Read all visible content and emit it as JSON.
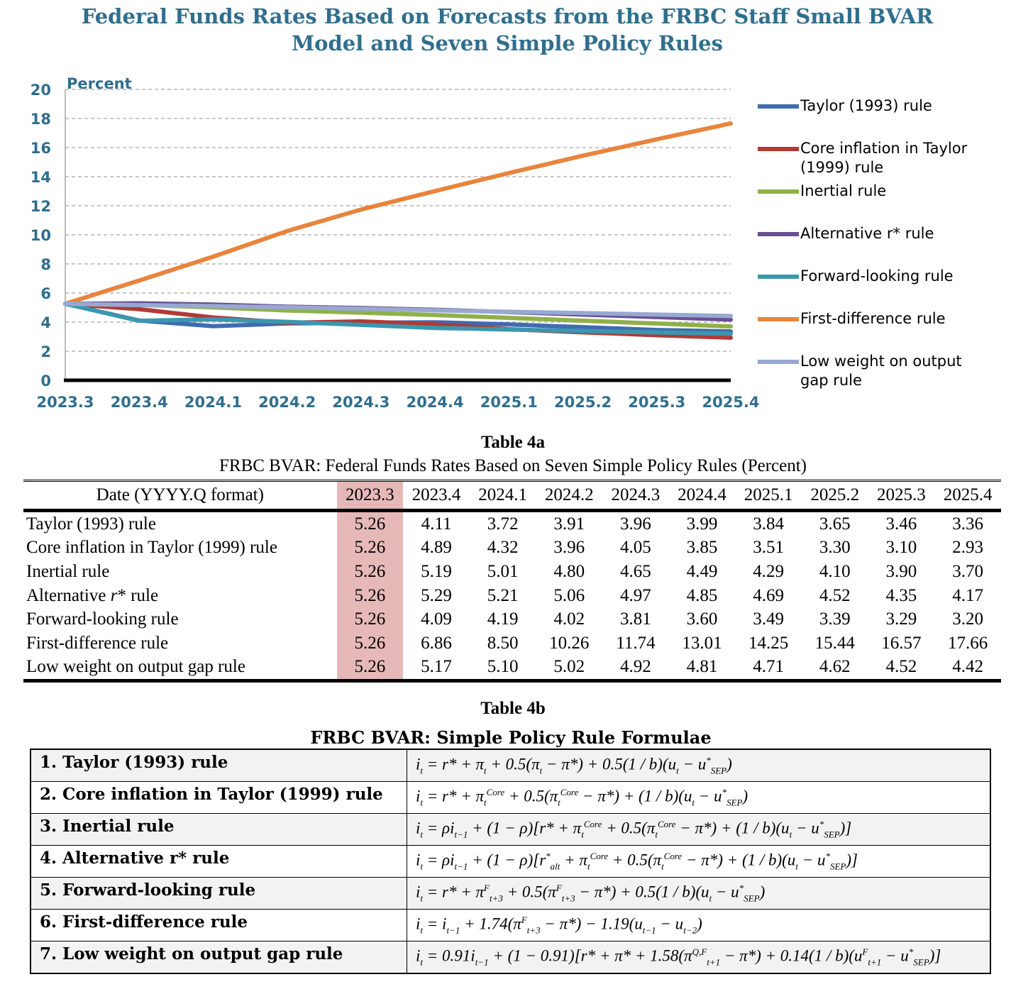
{
  "title": {
    "line1": "Federal Funds Rates Based on Forecasts from the FRBC Staff Small BVAR",
    "line2": "Model and Seven Simple Policy Rules"
  },
  "chart_data": {
    "type": "line",
    "ylabel": "Percent",
    "ylim": [
      0,
      20
    ],
    "yticks": [
      0,
      2,
      4,
      6,
      8,
      10,
      12,
      14,
      16,
      18,
      20
    ],
    "x": [
      "2023.3",
      "2023.4",
      "2024.1",
      "2024.2",
      "2024.3",
      "2024.4",
      "2025.1",
      "2025.2",
      "2025.3",
      "2025.4"
    ],
    "grid": true,
    "legend_position": "right",
    "series": [
      {
        "name": "Taylor (1993) rule",
        "color": "#3f6bb0",
        "values": [
          5.26,
          4.11,
          3.72,
          3.91,
          3.96,
          3.99,
          3.84,
          3.65,
          3.46,
          3.36
        ]
      },
      {
        "name": "Core inflation in Taylor (1999) rule",
        "color": "#b03a36",
        "values": [
          5.26,
          4.89,
          4.32,
          3.96,
          4.05,
          3.85,
          3.51,
          3.3,
          3.1,
          2.93
        ]
      },
      {
        "name": "Inertial rule",
        "color": "#8fb04a",
        "values": [
          5.26,
          5.19,
          5.01,
          4.8,
          4.65,
          4.49,
          4.29,
          4.1,
          3.9,
          3.7
        ]
      },
      {
        "name": "Alternative r* rule",
        "color": "#6b4e92",
        "values": [
          5.26,
          5.29,
          5.21,
          5.06,
          4.97,
          4.85,
          4.69,
          4.52,
          4.35,
          4.17
        ]
      },
      {
        "name": "Forward-looking rule",
        "color": "#3a97ae",
        "values": [
          5.26,
          4.09,
          4.19,
          4.02,
          3.81,
          3.6,
          3.49,
          3.39,
          3.29,
          3.2
        ]
      },
      {
        "name": "First-difference rule",
        "color": "#e8843c",
        "values": [
          5.26,
          6.86,
          8.5,
          10.26,
          11.74,
          13.01,
          14.25,
          15.44,
          16.57,
          17.66
        ]
      },
      {
        "name": "Low weight on output gap rule",
        "color": "#98a8d2",
        "values": [
          5.26,
          5.17,
          5.1,
          5.02,
          4.92,
          4.81,
          4.71,
          4.62,
          4.52,
          4.42
        ]
      }
    ]
  },
  "legend_labels": [
    {
      "line1": "Taylor (1993) rule",
      "line2": ""
    },
    {
      "line1": "Core inflation in Taylor",
      "line2": "(1999) rule"
    },
    {
      "line1": "Inertial rule",
      "line2": ""
    },
    {
      "line1": "Alternative r* rule",
      "line2": ""
    },
    {
      "line1": "Forward-looking rule",
      "line2": ""
    },
    {
      "line1": "First-difference rule",
      "line2": ""
    },
    {
      "line1": "Low weight on output",
      "line2": "gap rule"
    }
  ],
  "table4a": {
    "caption": "Table 4a",
    "subtitle": "FRBC BVAR: Federal Funds Rates Based on Seven Simple Policy Rules (Percent)",
    "header_label": "Date (YYYY.Q format)",
    "highlight_color": "#e6b9b8",
    "rows": [
      {
        "label": "Taylor (1993) rule",
        "values": [
          "5.26",
          "4.11",
          "3.72",
          "3.91",
          "3.96",
          "3.99",
          "3.84",
          "3.65",
          "3.46",
          "3.36"
        ]
      },
      {
        "label": "Core inflation in Taylor (1999) rule",
        "values": [
          "5.26",
          "4.89",
          "4.32",
          "3.96",
          "4.05",
          "3.85",
          "3.51",
          "3.30",
          "3.10",
          "2.93"
        ]
      },
      {
        "label": "Inertial rule",
        "values": [
          "5.26",
          "5.19",
          "5.01",
          "4.80",
          "4.65",
          "4.49",
          "4.29",
          "4.10",
          "3.90",
          "3.70"
        ]
      },
      {
        "label_prefix": "Alternative ",
        "label_italic": "r",
        "label_suffix": "* rule",
        "values": [
          "5.26",
          "5.29",
          "5.21",
          "5.06",
          "4.97",
          "4.85",
          "4.69",
          "4.52",
          "4.35",
          "4.17"
        ]
      },
      {
        "label": "Forward-looking rule",
        "values": [
          "5.26",
          "4.09",
          "4.19",
          "4.02",
          "3.81",
          "3.60",
          "3.49",
          "3.39",
          "3.29",
          "3.20"
        ]
      },
      {
        "label": "First-difference rule",
        "values": [
          "5.26",
          "6.86",
          "8.50",
          "10.26",
          "11.74",
          "13.01",
          "14.25",
          "15.44",
          "16.57",
          "17.66"
        ]
      },
      {
        "label": "Low weight on output gap rule",
        "values": [
          "5.26",
          "5.17",
          "5.10",
          "5.02",
          "4.92",
          "4.81",
          "4.71",
          "4.62",
          "4.52",
          "4.42"
        ]
      }
    ]
  },
  "table4b": {
    "caption": "Table 4b",
    "subtitle": "FRBC BVAR: Simple Policy Rule Formulae",
    "rules": [
      "1. Taylor (1993) rule",
      "2. Core inflation in Taylor (1999) rule",
      "3. Inertial rule",
      "4. Alternative r* rule",
      "5. Forward-looking rule",
      "6. First-difference rule",
      "7. Low weight on output gap rule"
    ],
    "formulas": [
      "i_t = r* + π_t + 0.5(π_t − π*) + 0.5(1/b)(u_t − u*_SEP)",
      "i_t = r* + π_t^Core + 0.5(π_t^Core − π*) + (1/b)(u_t − u*_SEP)",
      "i_t = ρi_t−1 + (1−ρ)[r* + π_t^Core + 0.5(π_t^Core − π*) + (1/b)(u_t − u*_SEP)]",
      "i_t = ρi_t−1 + (1−ρ)[r*_alt + π_t^Core + 0.5(π_t^Core − π*) + (1/b)(u_t − u*_SEP)]",
      "i_t = r* + π^F_t+3 + 0.5(π^F_t+3 − π*) + 0.5(1/b)(u_t − u*_SEP)",
      "i_t = i_t−1 + 1.74(π^F_t+3 − π*) − 1.19(u_t−1 − u_t−2)",
      "i_t = 0.91i_t−1 + (1−0.91)[r* + π* + 1.58(π^Q,F_t+1 − π*) + 0.14(1/b)(u^F_t+1 − u*_SEP)]"
    ]
  }
}
